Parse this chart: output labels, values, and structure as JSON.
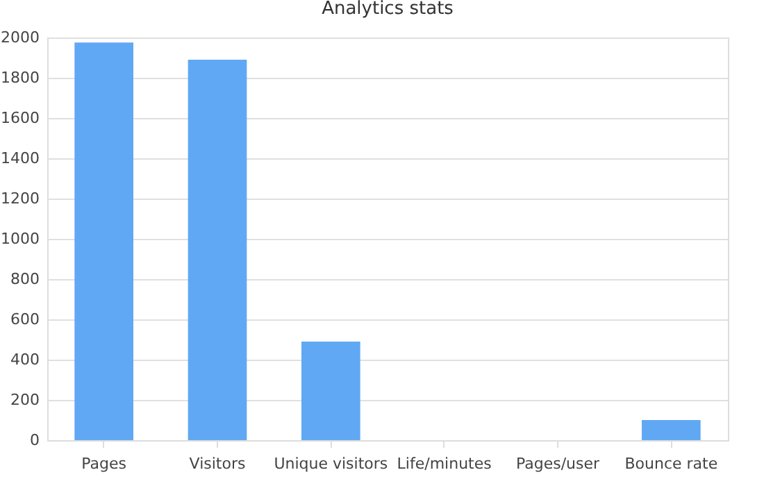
{
  "chart_data": {
    "type": "bar",
    "title": "Analytics stats",
    "categories": [
      "Pages",
      "Visitors",
      "Unique visitors",
      "Life/minutes",
      "Pages/user",
      "Bounce rate"
    ],
    "values": [
      1975,
      1890,
      490,
      0,
      0,
      100
    ],
    "color": "#60a8f4",
    "ylim": [
      0,
      2000
    ],
    "yticks": [
      0,
      200,
      400,
      600,
      800,
      1000,
      1200,
      1400,
      1600,
      1800,
      2000
    ],
    "grid": "y"
  }
}
